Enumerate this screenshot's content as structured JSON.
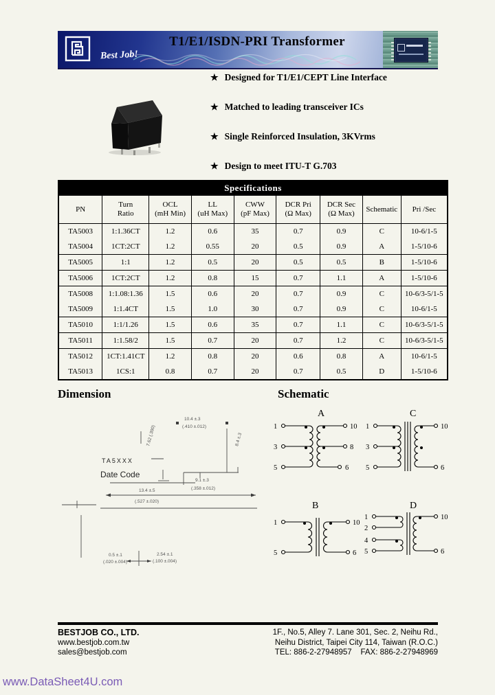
{
  "banner": {
    "title": "T1/E1/ISDN-PRI Transformer",
    "slogan": "Best Job!"
  },
  "features": [
    "Designed for T1/E1/CEPT Line Interface",
    "Matched to leading transceiver ICs",
    "Single Reinforced Insulation, 3KVrms",
    "Design to meet ITU-T G.703"
  ],
  "spec_table": {
    "title": "Specifications",
    "columns": [
      {
        "l1": "PN",
        "l2": ""
      },
      {
        "l1": "Turn",
        "l2": "Ratio"
      },
      {
        "l1": "OCL",
        "l2": "(mH Min)"
      },
      {
        "l1": "LL",
        "l2": "(uH Max)"
      },
      {
        "l1": "CWW",
        "l2": "(pF Max)"
      },
      {
        "l1": "DCR Pri",
        "l2": "(Ω Max)"
      },
      {
        "l1": "DCR Sec",
        "l2": "(Ω Max)"
      },
      {
        "l1": "Schematic",
        "l2": ""
      },
      {
        "l1": "Pri /Sec",
        "l2": ""
      }
    ],
    "rows": [
      [
        "TA5003",
        "1:1.36CT",
        "1.2",
        "0.6",
        "35",
        "0.7",
        "0.9",
        "C",
        "10-6/1-5"
      ],
      [
        "TA5004",
        "1CT:2CT",
        "1.2",
        "0.55",
        "20",
        "0.5",
        "0.9",
        "A",
        "1-5/10-6"
      ],
      [
        "TA5005",
        "1:1",
        "1.2",
        "0.5",
        "20",
        "0.5",
        "0.5",
        "B",
        "1-5/10-6"
      ],
      [
        "TA5006",
        "1CT:2CT",
        "1.2",
        "0.8",
        "15",
        "0.7",
        "1.1",
        "A",
        "1-5/10-6"
      ],
      [
        "TA5008",
        "1:1.08:1.36",
        "1.5",
        "0.6",
        "20",
        "0.7",
        "0.9",
        "C",
        "10-6/3-5/1-5"
      ],
      [
        "TA5009",
        "1:1.4CT",
        "1.5",
        "1.0",
        "30",
        "0.7",
        "0.9",
        "C",
        "10-6/1-5"
      ],
      [
        "TA5010",
        "1:1/1.26",
        "1.5",
        "0.6",
        "35",
        "0.7",
        "1.1",
        "C",
        "10-6/3-5/1-5"
      ],
      [
        "TA5011",
        "1:1.58/2",
        "1.5",
        "0.7",
        "20",
        "0.7",
        "1.2",
        "C",
        "10-6/3-5/1-5"
      ],
      [
        "TA5012",
        "1CT:1.41CT",
        "1.2",
        "0.8",
        "20",
        "0.6",
        "0.8",
        "A",
        "10-6/1-5"
      ],
      [
        "TA5013",
        "1CS:1",
        "0.8",
        "0.7",
        "20",
        "0.7",
        "0.5",
        "D",
        "1-5/10-6"
      ]
    ]
  },
  "dimension": {
    "heading": "Dimension",
    "part_marking": "TA5XXX",
    "date_code": "Date Code",
    "dims": {
      "width_top": "10.4 ±.3",
      "width_top_in": "(.410 ±.012)",
      "height_side": "8.4 ±.3",
      "body_width": "9.1 ±.3",
      "body_width_in": "(.358 ±.012)",
      "length": "13.4 ±.5",
      "length_in": "(.527 ±.020)",
      "row_space": "7.62 (.300)",
      "pin_w": "0.5 ±.1",
      "pin_w_in": "(.020 ±.004)",
      "pin_pitch": "2.54 ±.1",
      "pin_pitch_in": "(.100 ±.004)"
    }
  },
  "schematics": {
    "heading": "Schematic",
    "diagrams": [
      {
        "label": "A",
        "left_pins": [
          "1",
          "3",
          "5"
        ],
        "right_pins": [
          "10",
          "8",
          "6"
        ]
      },
      {
        "label": "C",
        "left_pins": [
          "1",
          "3",
          "5"
        ],
        "right_pins": [
          "10",
          "6"
        ]
      },
      {
        "label": "B",
        "left_pins": [
          "1",
          "5"
        ],
        "right_pins": [
          "10",
          "6"
        ]
      },
      {
        "label": "D",
        "left_pins": [
          "1",
          "2",
          "4",
          "5"
        ],
        "right_pins": [
          "10",
          "6"
        ]
      }
    ]
  },
  "footer": {
    "company": "BESTJOB CO., LTD.",
    "website": "www.bestjob.com.tw",
    "email": "sales@bestjob.com",
    "address1": "1F., No.5, Alley 7. Lane 301, Sec. 2, Neihu Rd.,",
    "address2": "Neihu District, Taipei City 114, Taiwan (R.O.C.)",
    "tel_fax": "TEL: 886-2-27948957    FAX: 886-2-27948969"
  },
  "watermark": "www.DataSheet4U.com"
}
